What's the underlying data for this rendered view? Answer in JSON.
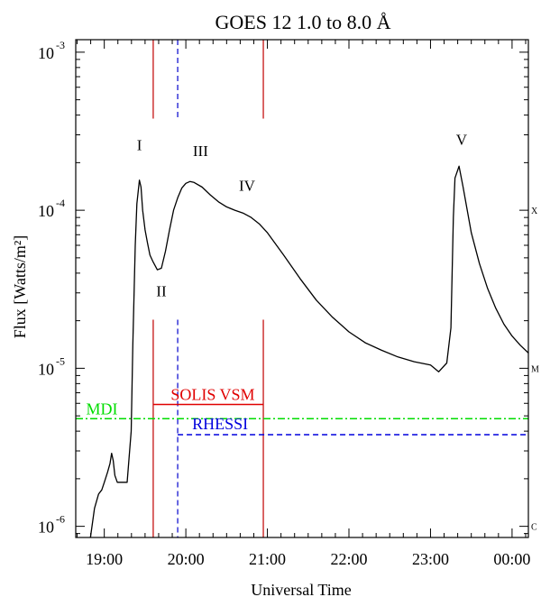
{
  "chart_data": {
    "type": "line",
    "title": "GOES 12 1.0 to 8.0 Å",
    "xlabel": "Universal Time",
    "ylabel": "Flux [Watts/m²]",
    "yscale": "log",
    "xlim": [
      18.65,
      24.2
    ],
    "ylim": [
      8.5e-07,
      0.0012
    ],
    "x_ticks": [
      {
        "x": 19,
        "label": "19:00"
      },
      {
        "x": 20,
        "label": "20:00"
      },
      {
        "x": 21,
        "label": "21:00"
      },
      {
        "x": 22,
        "label": "22:00"
      },
      {
        "x": 23,
        "label": "23:00"
      },
      {
        "x": 24,
        "label": "00:00"
      }
    ],
    "y_ticks": [
      {
        "y": 1e-06,
        "mantissa": "10",
        "exp": "-6"
      },
      {
        "y": 1e-05,
        "mantissa": "10",
        "exp": "-5"
      },
      {
        "y": 0.0001,
        "mantissa": "10",
        "exp": "-4"
      },
      {
        "y": 0.001,
        "mantissa": "10",
        "exp": "-3"
      }
    ],
    "class_labels": [
      {
        "y": 1e-06,
        "label": "C"
      },
      {
        "y": 1e-05,
        "label": "M"
      },
      {
        "y": 0.0001,
        "label": "X"
      }
    ],
    "series": [
      {
        "color": "#000000",
        "x": [
          18.83,
          18.88,
          18.93,
          18.97,
          19.0,
          19.04,
          19.07,
          19.09,
          19.11,
          19.13,
          19.16,
          19.2,
          19.24,
          19.28,
          19.33,
          19.35,
          19.38,
          19.4,
          19.43,
          19.45,
          19.47,
          19.5,
          19.53,
          19.56,
          19.6,
          19.65,
          19.7,
          19.75,
          19.8,
          19.85,
          19.9,
          19.95,
          20.0,
          20.05,
          20.1,
          20.2,
          20.3,
          20.4,
          20.5,
          20.6,
          20.7,
          20.8,
          20.9,
          21.0,
          21.2,
          21.4,
          21.6,
          21.8,
          22.0,
          22.2,
          22.4,
          22.6,
          22.8,
          23.0,
          23.1,
          23.2,
          23.25,
          23.28,
          23.3,
          23.35,
          23.4,
          23.45,
          23.5,
          23.6,
          23.7,
          23.8,
          23.9,
          24.0,
          24.1,
          24.2
        ],
        "y": [
          8.5e-07,
          1.3e-06,
          1.6e-06,
          1.7e-06,
          1.9e-06,
          2.2e-06,
          2.5e-06,
          2.9e-06,
          2.6e-06,
          2.1e-06,
          1.9e-06,
          1.9e-06,
          1.9e-06,
          1.9e-06,
          4e-06,
          1.4e-05,
          6e-05,
          0.00011,
          0.000155,
          0.00014,
          0.0001,
          7.5e-05,
          6.2e-05,
          5.2e-05,
          4.7e-05,
          4.2e-05,
          4.3e-05,
          5.5e-05,
          7.5e-05,
          0.0001,
          0.00012,
          0.000138,
          0.000148,
          0.000152,
          0.00015,
          0.00014,
          0.000125,
          0.000113,
          0.000105,
          0.0001,
          9.6e-05,
          9e-05,
          8.2e-05,
          7.2e-05,
          5.2e-05,
          3.7e-05,
          2.7e-05,
          2.1e-05,
          1.7e-05,
          1.45e-05,
          1.3e-05,
          1.18e-05,
          1.1e-05,
          1.05e-05,
          9.5e-06,
          1.08e-05,
          1.8e-05,
          9e-05,
          0.00016,
          0.00019,
          0.00014,
          0.0001,
          7.2e-05,
          4.6e-05,
          3.2e-05,
          2.4e-05,
          1.9e-05,
          1.6e-05,
          1.4e-05,
          1.25e-05
        ]
      }
    ],
    "peak_labels": [
      {
        "label": "I",
        "x": 19.43,
        "y": 0.00024
      },
      {
        "label": "II",
        "x": 19.7,
        "y": 2.85e-05
      },
      {
        "label": "III",
        "x": 20.18,
        "y": 0.00022
      },
      {
        "label": "IV",
        "x": 20.75,
        "y": 0.000133
      },
      {
        "label": "V",
        "x": 23.38,
        "y": 0.00026
      }
    ],
    "vertical_markers": [
      {
        "x": 19.6,
        "color": "#c00000",
        "dash": "solid",
        "y_from": 2.03e-05,
        "y_to": 6e-07
      },
      {
        "x": 19.6,
        "color": "#c00000",
        "dash": "solid",
        "y_from": 0.0012,
        "y_to": 0.00038
      },
      {
        "x": 19.9,
        "color": "#0000cc",
        "dash": "dashed",
        "y_from": 2.03e-05,
        "y_to": 6e-07
      },
      {
        "x": 19.9,
        "color": "#0000cc",
        "dash": "dashed",
        "y_from": 0.0012,
        "y_to": 0.00038
      },
      {
        "x": 20.95,
        "color": "#c00000",
        "dash": "solid",
        "y_from": 2.03e-05,
        "y_to": 6e-07
      },
      {
        "x": 20.95,
        "color": "#c00000",
        "dash": "solid",
        "y_from": 0.0012,
        "y_to": 0.00038
      }
    ],
    "instrument_lines": [
      {
        "label": "SOLIS VSM",
        "color": "#e00000",
        "dash": "solid",
        "x_start": 19.6,
        "x_end": 20.95,
        "y": 5.9e-06,
        "label_x": 20.33,
        "label_y": 6.3e-06
      },
      {
        "label": "MDI",
        "color": "#00dd00",
        "dash": "dashdot",
        "x_start": 18.65,
        "x_end": 24.2,
        "y": 4.8e-06,
        "label_x": 18.97,
        "label_y": 5.1e-06
      },
      {
        "label": "RHESSI",
        "color": "#0000dd",
        "dash": "dashed",
        "x_start": 19.9,
        "x_end": 24.2,
        "y": 3.8e-06,
        "label_x": 20.42,
        "label_y": 4.1e-06
      }
    ]
  }
}
